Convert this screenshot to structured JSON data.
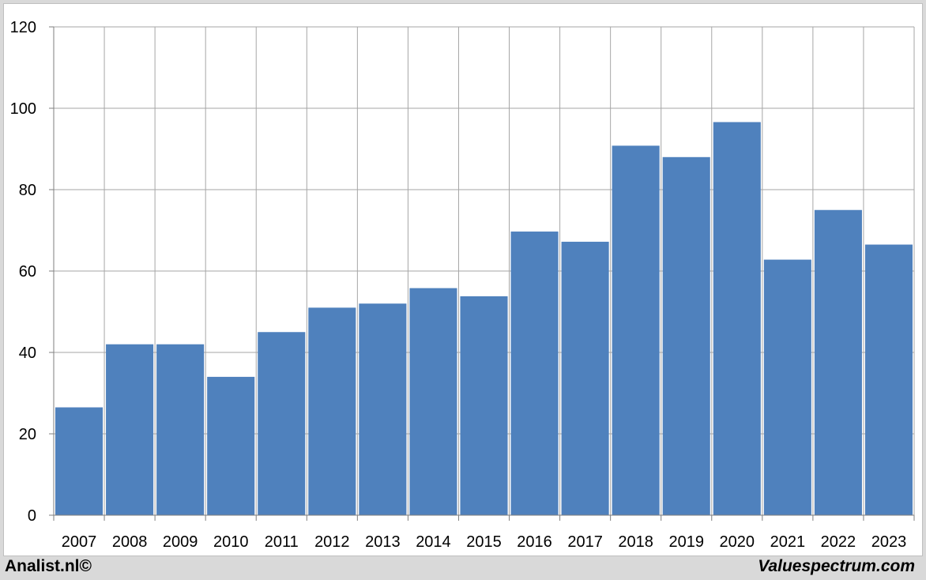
{
  "chart_data": {
    "type": "bar",
    "categories": [
      "2007",
      "2008",
      "2009",
      "2010",
      "2011",
      "2012",
      "2013",
      "2014",
      "2015",
      "2016",
      "2017",
      "2018",
      "2019",
      "2020",
      "2021",
      "2022",
      "2023"
    ],
    "values": [
      26.5,
      42,
      42,
      34,
      45,
      51,
      52,
      55.8,
      53.8,
      69.7,
      67.2,
      90.8,
      88,
      96.6,
      62.8,
      75,
      66.5
    ],
    "ylim": [
      0,
      120
    ],
    "yticks": [
      0,
      20,
      40,
      60,
      80,
      100,
      120
    ],
    "grid": true,
    "bar_color": "#4f81bd",
    "grid_color": "#a6a6a6"
  },
  "footer": {
    "left_label": "Analist.nl©",
    "right_label": "Valuespectrum.com"
  }
}
